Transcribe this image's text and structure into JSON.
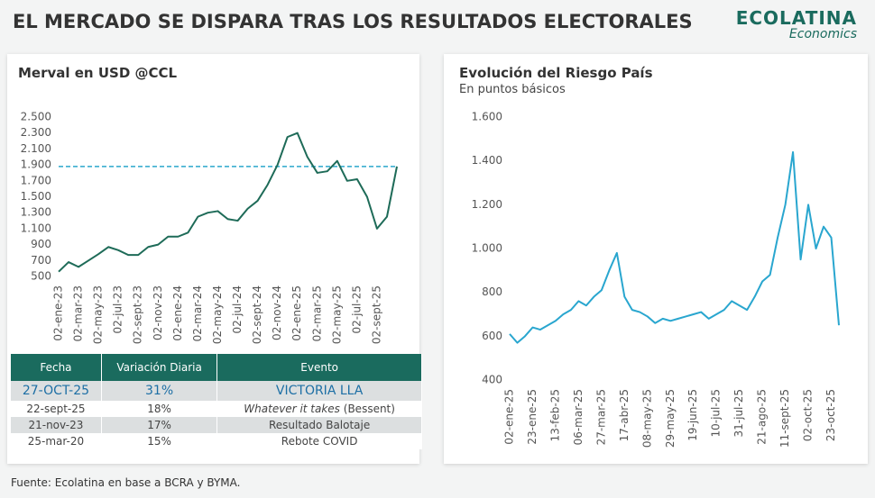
{
  "header": {
    "title": "EL MERCADO SE DISPARA TRAS LOS RESULTADOS ELECTORALES",
    "brand": "ECOLATINA",
    "brand_sub": "Economics"
  },
  "chart_data": [
    {
      "type": "line",
      "title": "Merval en USD @CCL",
      "color": "#1e6b58",
      "reference_line": 1880,
      "reference_color": "#2aa8cc",
      "categories": [
        "02-ene-23",
        null,
        "02-mar-23",
        null,
        "02-may-23",
        null,
        "02-jul-23",
        null,
        "02-sept-23",
        null,
        "02-nov-23",
        null,
        "02-ene-24",
        null,
        "02-mar-24",
        null,
        "02-may-24",
        null,
        "02-jul-24",
        null,
        "02-sept-24",
        null,
        "02-nov-24",
        null,
        "02-ene-25",
        null,
        "02-mar-25",
        null,
        "02-may-25",
        null,
        "02-jul-25",
        null,
        "02-sept-25",
        null,
        null
      ],
      "values": [
        560,
        680,
        620,
        700,
        780,
        870,
        830,
        770,
        770,
        870,
        900,
        1000,
        1000,
        1050,
        1250,
        1300,
        1320,
        1220,
        1200,
        1350,
        1450,
        1650,
        1900,
        2250,
        2300,
        2000,
        1800,
        1820,
        1950,
        1700,
        1720,
        1500,
        1100,
        1250,
        1880
      ],
      "ylim": [
        500,
        2500
      ],
      "yticks": [
        500,
        700,
        900,
        {
          "value": 1100,
          "label": "1.100"
        },
        {
          "value": 1300,
          "label": "1.300"
        },
        {
          "value": 1500,
          "label": "1.500"
        },
        {
          "value": 1700,
          "label": "1.700"
        },
        {
          "value": 1900,
          "label": "1.900"
        },
        {
          "value": 2100,
          "label": "2.100"
        },
        {
          "value": 2300,
          "label": "2.300"
        },
        {
          "value": 2500,
          "label": "2.500"
        }
      ]
    },
    {
      "type": "line",
      "title": "Evolución del Riesgo País",
      "subtitle": "En puntos básicos",
      "color": "#29a6cf",
      "categories": [
        "02-ene-25",
        null,
        null,
        "23-ene-25",
        null,
        null,
        "13-feb-25",
        null,
        null,
        "06-mar-25",
        null,
        null,
        "27-mar-25",
        null,
        null,
        "17-abr-25",
        null,
        null,
        "08-may-25",
        null,
        null,
        "29-may-25",
        null,
        null,
        "19-jun-25",
        null,
        null,
        "10-jul-25",
        null,
        null,
        "31-jul-25",
        null,
        null,
        "21-ago-25",
        null,
        null,
        "11-sept-25",
        null,
        null,
        "02-oct-25",
        null,
        null,
        "23-oct-25",
        null
      ],
      "values": [
        610,
        570,
        600,
        640,
        630,
        650,
        670,
        700,
        720,
        760,
        740,
        780,
        810,
        900,
        980,
        780,
        720,
        710,
        690,
        660,
        680,
        670,
        680,
        690,
        700,
        710,
        680,
        700,
        720,
        760,
        740,
        720,
        780,
        850,
        880,
        1050,
        1200,
        1440,
        950,
        1200,
        1000,
        1100,
        1050,
        650
      ],
      "ylim": [
        400,
        1600
      ],
      "yticks": [
        400,
        600,
        800,
        {
          "value": 1000,
          "label": "1.000"
        },
        {
          "value": 1200,
          "label": "1.200"
        },
        {
          "value": 1400,
          "label": "1.400"
        },
        {
          "value": 1600,
          "label": "1.600"
        }
      ]
    }
  ],
  "table": {
    "header": [
      "Fecha",
      "Variación Diaria",
      "Evento"
    ],
    "rows": [
      [
        "27-OCT-25",
        "31%",
        "VICTORIA LLA"
      ],
      [
        "22-sept-25",
        "18%",
        {
          "italic": "Whatever it takes",
          "text": "(Bessent)"
        }
      ],
      [
        "21-nov-23",
        "17%",
        "Resultado Balotaje"
      ],
      [
        "25-mar-20",
        "15%",
        "Rebote COVID"
      ]
    ]
  },
  "source": "Fuente: Ecolatina en base a BCRA y BYMA."
}
